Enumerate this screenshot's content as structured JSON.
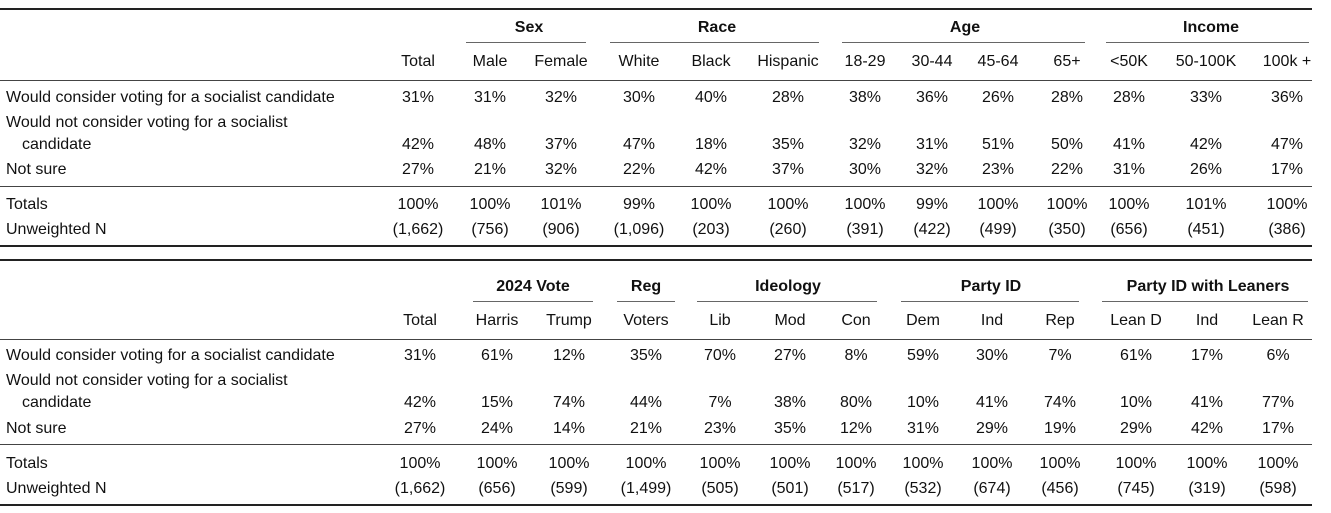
{
  "tables": [
    {
      "groups": [
        {
          "label": "Sex"
        },
        {
          "label": "Race"
        },
        {
          "label": "Age"
        },
        {
          "label": "Income"
        }
      ],
      "columns": [
        "Total",
        "Male",
        "Female",
        "White",
        "Black",
        "Hispanic",
        "18-29",
        "30-44",
        "45-64",
        "65+",
        "<50K",
        "50-100K",
        "100k +"
      ],
      "rows": [
        {
          "label_lines": [
            "Would consider voting for a socialist candidate"
          ],
          "values": [
            "31%",
            "31%",
            "32%",
            "30%",
            "40%",
            "28%",
            "38%",
            "36%",
            "26%",
            "28%",
            "28%",
            "33%",
            "36%"
          ]
        },
        {
          "label_lines": [
            "Would not consider voting for a socialist",
            "candidate"
          ],
          "values": [
            "42%",
            "48%",
            "37%",
            "47%",
            "18%",
            "35%",
            "32%",
            "31%",
            "51%",
            "50%",
            "41%",
            "42%",
            "47%"
          ]
        },
        {
          "label_lines": [
            "Not sure"
          ],
          "values": [
            "27%",
            "21%",
            "32%",
            "22%",
            "42%",
            "37%",
            "30%",
            "32%",
            "23%",
            "22%",
            "31%",
            "26%",
            "17%"
          ]
        }
      ],
      "totals": {
        "label": "Totals",
        "values": [
          "100%",
          "100%",
          "101%",
          "99%",
          "100%",
          "100%",
          "100%",
          "99%",
          "100%",
          "100%",
          "100%",
          "101%",
          "100%"
        ]
      },
      "unweighted": {
        "label": "Unweighted N",
        "values": [
          "(1,662)",
          "(756)",
          "(906)",
          "(1,096)",
          "(203)",
          "(260)",
          "(391)",
          "(422)",
          "(499)",
          "(350)",
          "(656)",
          "(451)",
          "(386)"
        ]
      }
    },
    {
      "groups": [
        {
          "label": "2024 Vote"
        },
        {
          "label": "Reg"
        },
        {
          "label": "Ideology"
        },
        {
          "label": "Party ID"
        },
        {
          "label": "Party ID with Leaners"
        }
      ],
      "columns": [
        "Total",
        "Harris",
        "Trump",
        "Voters",
        "Lib",
        "Mod",
        "Con",
        "Dem",
        "Ind",
        "Rep",
        "Lean D",
        "Ind",
        "Lean R"
      ],
      "rows": [
        {
          "label_lines": [
            "Would consider voting for a socialist candidate"
          ],
          "values": [
            "31%",
            "61%",
            "12%",
            "35%",
            "70%",
            "27%",
            "8%",
            "59%",
            "30%",
            "7%",
            "61%",
            "17%",
            "6%"
          ]
        },
        {
          "label_lines": [
            "Would not consider voting for a socialist",
            "candidate"
          ],
          "values": [
            "42%",
            "15%",
            "74%",
            "44%",
            "7%",
            "38%",
            "80%",
            "10%",
            "41%",
            "74%",
            "10%",
            "41%",
            "77%"
          ]
        },
        {
          "label_lines": [
            "Not sure"
          ],
          "values": [
            "27%",
            "24%",
            "14%",
            "21%",
            "23%",
            "35%",
            "12%",
            "31%",
            "29%",
            "19%",
            "29%",
            "42%",
            "17%"
          ]
        }
      ],
      "totals": {
        "label": "Totals",
        "values": [
          "100%",
          "100%",
          "100%",
          "100%",
          "100%",
          "100%",
          "100%",
          "100%",
          "100%",
          "100%",
          "100%",
          "100%",
          "100%"
        ]
      },
      "unweighted": {
        "label": "Unweighted N",
        "values": [
          "(1,662)",
          "(656)",
          "(599)",
          "(1,499)",
          "(505)",
          "(501)",
          "(517)",
          "(532)",
          "(674)",
          "(456)",
          "(745)",
          "(319)",
          "(598)"
        ]
      }
    }
  ]
}
